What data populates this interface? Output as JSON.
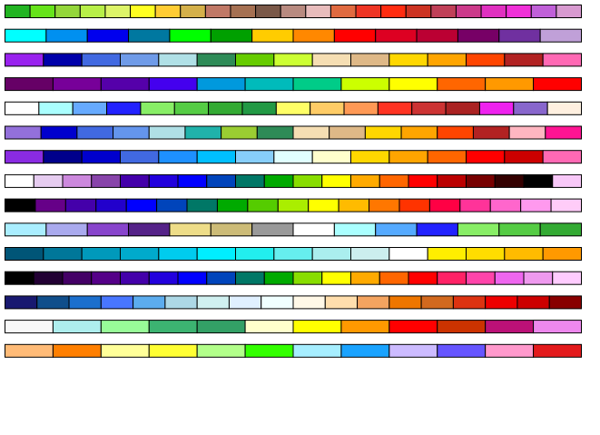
{
  "palettes": [
    [
      "#22b422",
      "#66e31a",
      "#94d63a",
      "#b8ef48",
      "#ddf468",
      "#ffff22",
      "#ffcc33",
      "#d4b04a",
      "#c07866",
      "#a57052",
      "#7a5848",
      "#b88a80",
      "#e8bcbc",
      "#e06a40",
      "#ee3524",
      "#ff2c10",
      "#cc3322",
      "#c04058",
      "#cc3a8a",
      "#e030c0",
      "#f030d8",
      "#c060d8",
      "#d89ad0"
    ],
    [
      "#00ffff",
      "#0090f0",
      "#0000ee",
      "#0078a0",
      "#00ff00",
      "#00a000",
      "#ffcc00",
      "#ff8800",
      "#ff0000",
      "#dd0022",
      "#bb0033",
      "#770066",
      "#7030a0",
      "#c0a0d8"
    ],
    [
      "#9922ee",
      "#0000aa",
      "#4169e1",
      "#6f9be8",
      "#b0e0e6",
      "#2e8b57",
      "#66cc00",
      "#ccff33",
      "#f5deb3",
      "#deb887",
      "#ffd700",
      "#ffa500",
      "#ff4500",
      "#b22222",
      "#ff69b4"
    ],
    [
      "#660066",
      "#770099",
      "#5500aa",
      "#4400ee",
      "#0099dd",
      "#00bbbb",
      "#00cc88",
      "#ccff00",
      "#ffff00",
      "#ff6600",
      "#ff9900",
      "#ff0000"
    ],
    [
      "#ffffff",
      "#aaffff",
      "#66aaff",
      "#2222ff",
      "#88ee66",
      "#55cc44",
      "#33aa33",
      "#229944",
      "#ffff66",
      "#ffcc66",
      "#ff9955",
      "#ff3322",
      "#cc3333",
      "#aa2222",
      "#ee22ee",
      "#8866cc",
      "#fff0e0"
    ],
    [
      "#9370db",
      "#0000cd",
      "#4169e1",
      "#6495ed",
      "#b0e0e6",
      "#20b2aa",
      "#9acd32",
      "#2e8b57",
      "#f5deb3",
      "#deb887",
      "#ffd700",
      "#ffa500",
      "#ff4500",
      "#b22222",
      "#ffb6c1",
      "#ff1493"
    ],
    [
      "#8a2be2",
      "#00008b",
      "#0000cd",
      "#4169e1",
      "#1e90ff",
      "#00bfff",
      "#87cefa",
      "#e0ffff",
      "#ffffcc",
      "#ffd700",
      "#ffa500",
      "#ff6600",
      "#ff0000",
      "#cc0000",
      "#ff69b4"
    ],
    [
      "#ffffff",
      "#e6ccf0",
      "#cc88dd",
      "#8844aa",
      "#4400aa",
      "#2200dd",
      "#0000ff",
      "#0044bb",
      "#007766",
      "#00aa00",
      "#88dd00",
      "#ffff00",
      "#ffaa00",
      "#ff6600",
      "#ff0000",
      "#bb0000",
      "#770000",
      "#330000",
      "#000000",
      "#f8c8f8"
    ],
    [
      "#000000",
      "#660088",
      "#4400aa",
      "#2200cc",
      "#0000ff",
      "#0044bb",
      "#007766",
      "#00aa00",
      "#55cc00",
      "#aaee00",
      "#ffff00",
      "#ffbb00",
      "#ff7700",
      "#ff3300",
      "#ff0044",
      "#ff3399",
      "#ff66cc",
      "#ff99ee",
      "#ffccf8"
    ],
    [
      "#aaeeff",
      "#aaaaee",
      "#8844cc",
      "#552288",
      "#eedd88",
      "#ccbb77",
      "#999999",
      "#ffffff",
      "#aaffff",
      "#55aaff",
      "#2222ff",
      "#88ee66",
      "#55cc44",
      "#33aa33"
    ],
    [
      "#005577",
      "#007799",
      "#0099bb",
      "#00aacc",
      "#00ccee",
      "#00eeff",
      "#22eeee",
      "#66eeee",
      "#aaeeee",
      "#cceeee",
      "#ffffff",
      "#ffee00",
      "#ffdd00",
      "#ffbb00",
      "#ff9900"
    ],
    [
      "#000000",
      "#220033",
      "#440066",
      "#550088",
      "#4400aa",
      "#2200dd",
      "#0000ff",
      "#0044bb",
      "#007766",
      "#00aa00",
      "#88dd00",
      "#ffff00",
      "#ffaa00",
      "#ff6600",
      "#ff0000",
      "#ff2266",
      "#ff44aa",
      "#ee66ee",
      "#ee99ee",
      "#ffccff"
    ],
    [
      "#191970",
      "#104e8b",
      "#1c6fcd",
      "#4876ff",
      "#5cacee",
      "#add8e6",
      "#d0f0f0",
      "#e0f0ff",
      "#f0ffff",
      "#fff8e7",
      "#ffdead",
      "#f4a460",
      "#ee7600",
      "#d2691e",
      "#dd3311",
      "#ee0000",
      "#cc0000",
      "#880000"
    ],
    [
      "#f8f8f8",
      "#aeeeee",
      "#98fb98",
      "#3cb371",
      "#33a066",
      "#ffffcc",
      "#ffff00",
      "#ff9900",
      "#ff0000",
      "#cc3300",
      "#bb1177",
      "#ee88ee"
    ],
    [
      "#ffbb77",
      "#ff7f00",
      "#ffff99",
      "#ffff33",
      "#b2ff8a",
      "#33ff00",
      "#a6eeff",
      "#1aa3ff",
      "#ccbbff",
      "#6655ff",
      "#ff99cc",
      "#e31a1c"
    ]
  ]
}
